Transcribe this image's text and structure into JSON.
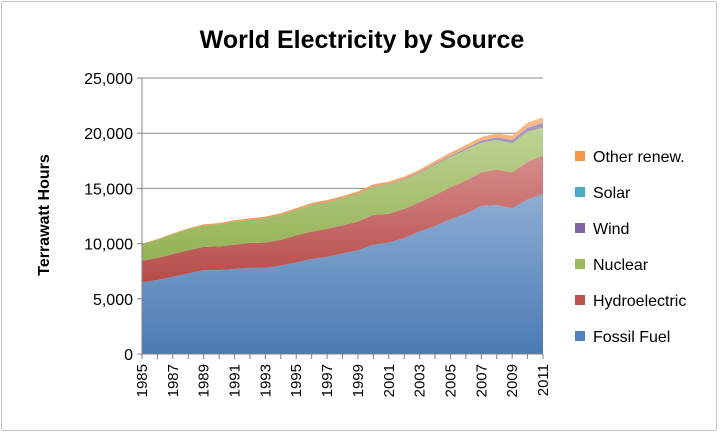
{
  "chart_data": {
    "type": "area",
    "stacked": true,
    "title": "World Electricity by Source",
    "xlabel": "",
    "ylabel": "Terrawatt Hours",
    "ylim": [
      0,
      25000
    ],
    "yticks": [
      0,
      5000,
      10000,
      15000,
      20000,
      25000
    ],
    "ytick_labels": [
      "0",
      "5,000",
      "10,000",
      "15,000",
      "20,000",
      "25,000"
    ],
    "x": [
      1985,
      1986,
      1987,
      1988,
      1989,
      1990,
      1991,
      1992,
      1993,
      1994,
      1995,
      1996,
      1997,
      1998,
      1999,
      2000,
      2001,
      2002,
      2003,
      2004,
      2005,
      2006,
      2007,
      2008,
      2009,
      2010,
      2011
    ],
    "xtick_labels": [
      "1985",
      "1987",
      "1989",
      "1991",
      "1993",
      "1995",
      "1997",
      "1999",
      "2001",
      "2003",
      "2005",
      "2007",
      "2009",
      "2011"
    ],
    "grid": "horizontal",
    "legend_position": "right",
    "series": [
      {
        "name": "Fossil Fuel",
        "color": "#4f81bd",
        "values": [
          6500,
          6700,
          7000,
          7300,
          7600,
          7600,
          7700,
          7800,
          7800,
          8000,
          8300,
          8600,
          8800,
          9100,
          9400,
          9900,
          10100,
          10500,
          11100,
          11600,
          12200,
          12700,
          13400,
          13500,
          13200,
          14000,
          14500
        ]
      },
      {
        "name": "Hydroelectric",
        "color": "#c0504d",
        "values": [
          1950,
          2000,
          2050,
          2100,
          2100,
          2150,
          2200,
          2250,
          2300,
          2350,
          2450,
          2500,
          2550,
          2550,
          2600,
          2700,
          2600,
          2650,
          2650,
          2800,
          2900,
          3000,
          3050,
          3200,
          3250,
          3400,
          3500
        ]
      },
      {
        "name": "Nuclear",
        "color": "#9bbb59",
        "values": [
          1500,
          1650,
          1800,
          1900,
          1950,
          2000,
          2100,
          2100,
          2200,
          2250,
          2300,
          2400,
          2400,
          2450,
          2500,
          2550,
          2650,
          2650,
          2650,
          2750,
          2750,
          2800,
          2700,
          2700,
          2650,
          2750,
          2500
        ]
      },
      {
        "name": "Wind",
        "color": "#8064a2",
        "values": [
          0,
          0,
          0,
          0,
          5,
          5,
          5,
          10,
          10,
          10,
          10,
          15,
          20,
          20,
          30,
          30,
          40,
          50,
          60,
          80,
          100,
          130,
          170,
          220,
          275,
          340,
          430
        ]
      },
      {
        "name": "Solar",
        "color": "#4bacc6",
        "values": [
          0,
          0,
          0,
          0,
          0,
          0,
          0,
          0,
          0,
          0,
          0,
          0,
          0,
          0,
          0,
          1,
          1,
          2,
          2,
          3,
          4,
          5,
          7,
          12,
          20,
          32,
          55
        ]
      },
      {
        "name": "Other renew.",
        "color": "#f79646",
        "values": [
          50,
          60,
          70,
          80,
          90,
          100,
          110,
          120,
          130,
          140,
          150,
          160,
          170,
          180,
          190,
          200,
          210,
          220,
          230,
          250,
          270,
          300,
          320,
          350,
          380,
          420,
          460
        ]
      }
    ]
  }
}
